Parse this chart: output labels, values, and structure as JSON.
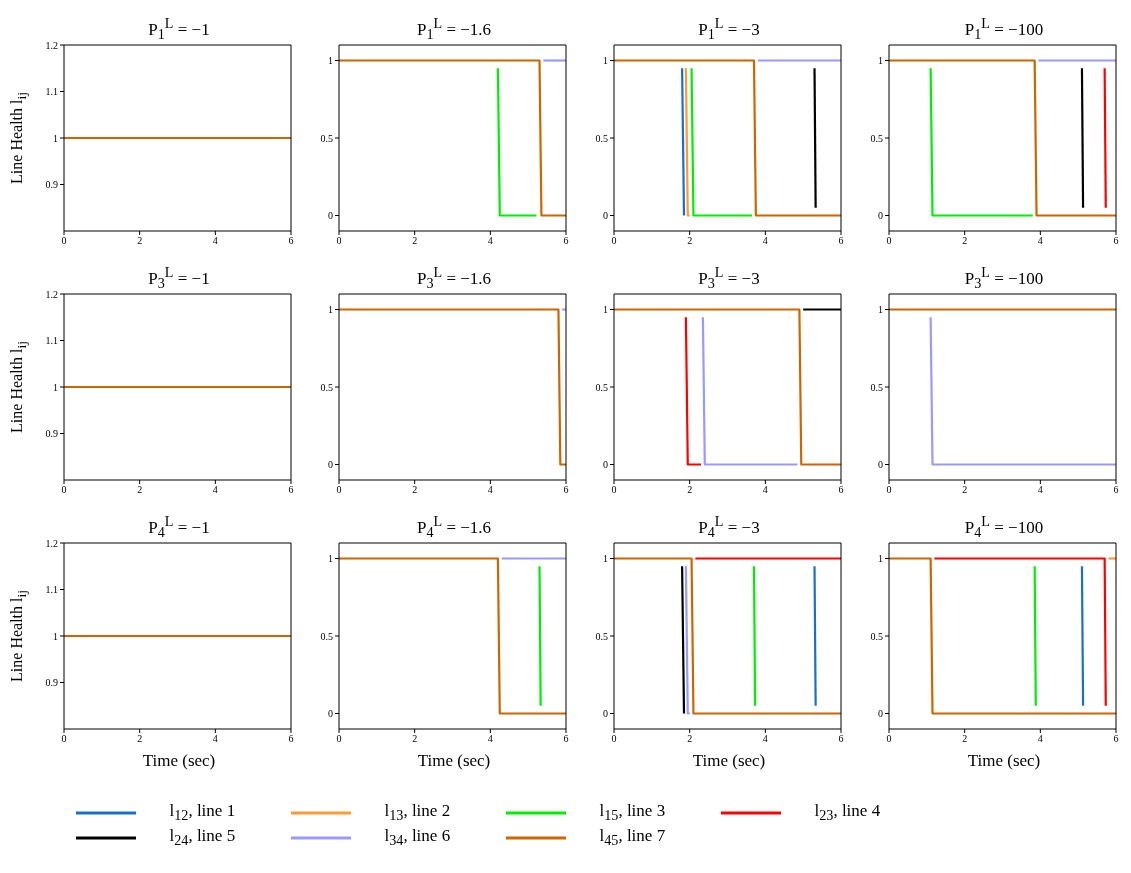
{
  "chart_data": [
    {
      "type": "line",
      "title": "P$_{1}$$^{L}$ = −1",
      "ylabel": "Line Health l$_{ij}$",
      "xlim": [
        0,
        6
      ],
      "xticks": [
        0,
        2,
        4,
        6
      ],
      "ylim": [
        0.8,
        1.2
      ],
      "yticks": [
        0.9,
        1,
        1.1,
        1.2
      ],
      "series": [
        {
          "color": "#cc6600",
          "x": [
            0,
            6
          ],
          "values": [
            1,
            1
          ]
        }
      ]
    },
    {
      "type": "line",
      "title": "P$_{1}$$^{L}$ = −1.6",
      "xlim": [
        0,
        6
      ],
      "xticks": [
        0,
        2,
        4,
        6
      ],
      "ylim": [
        -0.1,
        1.1
      ],
      "yticks": [
        0,
        0.5,
        1
      ],
      "series": [
        {
          "color": "#00ee00",
          "x": [
            4.2,
            4.25,
            5.22
          ],
          "values": [
            0.95,
            0,
            0
          ]
        },
        {
          "color": "#9999ff",
          "x": [
            5.4,
            6
          ],
          "values": [
            1,
            1
          ]
        },
        {
          "color": "#cc6600",
          "x": [
            0,
            5.3,
            5.35,
            6
          ],
          "values": [
            1,
            1,
            0,
            0
          ]
        }
      ]
    },
    {
      "type": "line",
      "title": "P$_{1}$$^{L}$ = −3",
      "legend": "bottom",
      "xlim": [
        0,
        6
      ],
      "xticks": [
        0,
        2,
        4,
        6
      ],
      "ylim": [
        -0.1,
        1.1
      ],
      "yticks": [
        0,
        0.5,
        1
      ],
      "series": [
        {
          "name": "l$_{12}$, line 1",
          "color": "#1a6fcc",
          "x": [
            1.8,
            1.85
          ],
          "values": [
            0.95,
            0
          ]
        },
        {
          "name": "l$_{13}$, line 2",
          "color": "#ff9933",
          "x": [
            1.9,
            1.95,
            2
          ],
          "values": [
            0.95,
            0,
            0
          ]
        },
        {
          "color": "#00ee00",
          "x": [
            2.05,
            2.1,
            3.65
          ],
          "values": [
            0.95,
            0,
            0
          ]
        },
        {
          "name": "l$_{24}$, line 5",
          "color": "#000000",
          "x": [
            5.3,
            5.33
          ],
          "values": [
            0.95,
            0.05
          ]
        },
        {
          "name": "l$_{34}$, line 6",
          "color": "#9999ff",
          "x": [
            3.8,
            6
          ],
          "values": [
            1,
            1
          ]
        },
        {
          "color": "#cc6600",
          "x": [
            0,
            3.7,
            3.75,
            6
          ],
          "values": [
            1,
            1,
            0,
            0
          ]
        }
      ]
    },
    {
      "type": "line",
      "title": "P$_{1}$$^{L}$ = −100",
      "legend": "bottom",
      "xlim": [
        0,
        6
      ],
      "xticks": [
        0,
        2,
        4,
        6
      ],
      "ylim": [
        -0.1,
        1.1
      ],
      "yticks": [
        0,
        0.5,
        1
      ],
      "series": [
        {
          "name": "l$_{15}$, line 3",
          "color": "#00ee00",
          "x": [
            1.1,
            1.15,
            3.8
          ],
          "values": [
            0.95,
            0,
            0
          ]
        },
        {
          "name": "l$_{23}$, line 4",
          "color": "#ff0000",
          "x": [
            5.7,
            5.73
          ],
          "values": [
            0.95,
            0.05
          ]
        },
        {
          "color": "#000000",
          "x": [
            5.1,
            5.13
          ],
          "values": [
            0.95,
            0.05
          ]
        },
        {
          "color": "#9999ff",
          "x": [
            3.95,
            6
          ],
          "values": [
            1,
            1
          ]
        },
        {
          "name": "l$_{45}$, line 7",
          "color": "#cc6600",
          "x": [
            0,
            3.85,
            3.9,
            6
          ],
          "values": [
            1,
            1,
            0,
            0
          ]
        }
      ]
    },
    {
      "type": "line",
      "title": "P$_{3}$$^{L}$ = −1",
      "ylabel": "Line Health l$_{ij}$",
      "xlim": [
        0,
        6
      ],
      "xticks": [
        0,
        2,
        4,
        6
      ],
      "ylim": [
        0.8,
        1.2
      ],
      "yticks": [
        0.9,
        1,
        1.1,
        1.2
      ],
      "series": [
        {
          "color": "#cc6600",
          "x": [
            0,
            6
          ],
          "values": [
            1,
            1
          ]
        }
      ]
    },
    {
      "type": "line",
      "title": "P$_{3}$$^{L}$ = −1.6",
      "xlim": [
        0,
        6
      ],
      "xticks": [
        0,
        2,
        4,
        6
      ],
      "ylim": [
        -0.1,
        1.1
      ],
      "yticks": [
        0,
        0.5,
        1
      ],
      "series": [
        {
          "color": "#9999ff",
          "x": [
            5.9,
            6
          ],
          "values": [
            1,
            1
          ]
        },
        {
          "color": "#cc6600",
          "x": [
            0,
            5.8,
            5.85,
            6
          ],
          "values": [
            1,
            1,
            0,
            0
          ]
        }
      ]
    },
    {
      "type": "line",
      "title": "P$_{3}$$^{L}$ = −3",
      "xlim": [
        0,
        6
      ],
      "xticks": [
        0,
        2,
        4,
        6
      ],
      "ylim": [
        -0.1,
        1.1
      ],
      "yticks": [
        0,
        0.5,
        1
      ],
      "series": [
        {
          "color": "#ff0000",
          "x": [
            1.9,
            1.95,
            2.3
          ],
          "values": [
            0.95,
            0,
            0
          ]
        },
        {
          "color": "#000000",
          "x": [
            5,
            6
          ],
          "values": [
            1,
            1
          ]
        },
        {
          "color": "#9999ff",
          "x": [
            2.35,
            2.4,
            4.85
          ],
          "values": [
            0.95,
            0,
            0
          ]
        },
        {
          "color": "#cc6600",
          "x": [
            0,
            4.9,
            4.95,
            6
          ],
          "values": [
            1,
            1,
            0,
            0
          ]
        }
      ]
    },
    {
      "type": "line",
      "title": "P$_{3}$$^{L}$ = −100",
      "xlim": [
        0,
        6
      ],
      "xticks": [
        0,
        2,
        4,
        6
      ],
      "ylim": [
        -0.1,
        1.1
      ],
      "yticks": [
        0,
        0.5,
        1
      ],
      "series": [
        {
          "color": "#9999ff",
          "x": [
            1.1,
            1.15,
            6
          ],
          "values": [
            0.95,
            0,
            0
          ]
        },
        {
          "color": "#cc6600",
          "x": [
            0,
            6
          ],
          "values": [
            1,
            1
          ]
        }
      ]
    },
    {
      "type": "line",
      "title": "P$_{4}$$^{L}$ = −1",
      "xlabel": "Time (sec)",
      "ylabel": "Line Health l$_{ij}$",
      "xlim": [
        0,
        6
      ],
      "xticks": [
        0,
        2,
        4,
        6
      ],
      "ylim": [
        0.8,
        1.2
      ],
      "yticks": [
        0.9,
        1,
        1.1,
        1.2
      ],
      "series": [
        {
          "color": "#cc6600",
          "x": [
            0,
            6
          ],
          "values": [
            1,
            1
          ]
        }
      ]
    },
    {
      "type": "line",
      "title": "P$_{4}$$^{L}$ = −1.6",
      "xlabel": "Time (sec)",
      "xlim": [
        0,
        6
      ],
      "xticks": [
        0,
        2,
        4,
        6
      ],
      "ylim": [
        -0.1,
        1.1
      ],
      "yticks": [
        0,
        0.5,
        1
      ],
      "series": [
        {
          "color": "#00ee00",
          "x": [
            5.3,
            5.33
          ],
          "values": [
            0.95,
            0.05
          ]
        },
        {
          "color": "#9999ff",
          "x": [
            4.3,
            6
          ],
          "values": [
            1,
            1
          ]
        },
        {
          "color": "#cc6600",
          "x": [
            0,
            4.2,
            4.25,
            6
          ],
          "values": [
            1,
            1,
            0,
            0
          ]
        }
      ]
    },
    {
      "type": "line",
      "title": "P$_{4}$$^{L}$ = −3",
      "xlabel": "Time (sec)",
      "xlim": [
        0,
        6
      ],
      "xticks": [
        0,
        2,
        4,
        6
      ],
      "ylim": [
        -0.1,
        1.1
      ],
      "yticks": [
        0,
        0.5,
        1
      ],
      "series": [
        {
          "color": "#1a6fcc",
          "x": [
            5.3,
            5.33
          ],
          "values": [
            0.95,
            0.05
          ]
        },
        {
          "color": "#00ee00",
          "x": [
            3.7,
            3.73
          ],
          "values": [
            0.95,
            0.05
          ]
        },
        {
          "color": "#ff0000",
          "x": [
            2.15,
            6
          ],
          "values": [
            1,
            1
          ]
        },
        {
          "color": "#000000",
          "x": [
            1.8,
            1.85
          ],
          "values": [
            0.95,
            0
          ]
        },
        {
          "color": "#9999ff",
          "x": [
            1.9,
            1.95,
            2
          ],
          "values": [
            0.95,
            0,
            0
          ]
        },
        {
          "color": "#cc6600",
          "x": [
            0,
            2.05,
            2.1,
            6
          ],
          "values": [
            1,
            1,
            0,
            0
          ]
        }
      ]
    },
    {
      "type": "line",
      "title": "P$_{4}$$^{L}$ = −100",
      "xlabel": "Time (sec)",
      "xlim": [
        0,
        6
      ],
      "xticks": [
        0,
        2,
        4,
        6
      ],
      "ylim": [
        -0.1,
        1.1
      ],
      "yticks": [
        0,
        0.5,
        1
      ],
      "series": [
        {
          "color": "#1a6fcc",
          "x": [
            5.1,
            5.13
          ],
          "values": [
            0.95,
            0.05
          ]
        },
        {
          "color": "#ff9933",
          "x": [
            5.8,
            6
          ],
          "values": [
            1,
            1
          ]
        },
        {
          "color": "#00ee00",
          "x": [
            3.85,
            3.88
          ],
          "values": [
            0.95,
            0.05
          ]
        },
        {
          "color": "#ff0000",
          "x": [
            1.2,
            5.7,
            5.73
          ],
          "values": [
            1,
            1,
            0.05
          ]
        },
        {
          "color": "#cc6600",
          "x": [
            0,
            1.1,
            1.15,
            6
          ],
          "values": [
            1,
            1,
            0,
            0
          ]
        }
      ]
    }
  ]
}
